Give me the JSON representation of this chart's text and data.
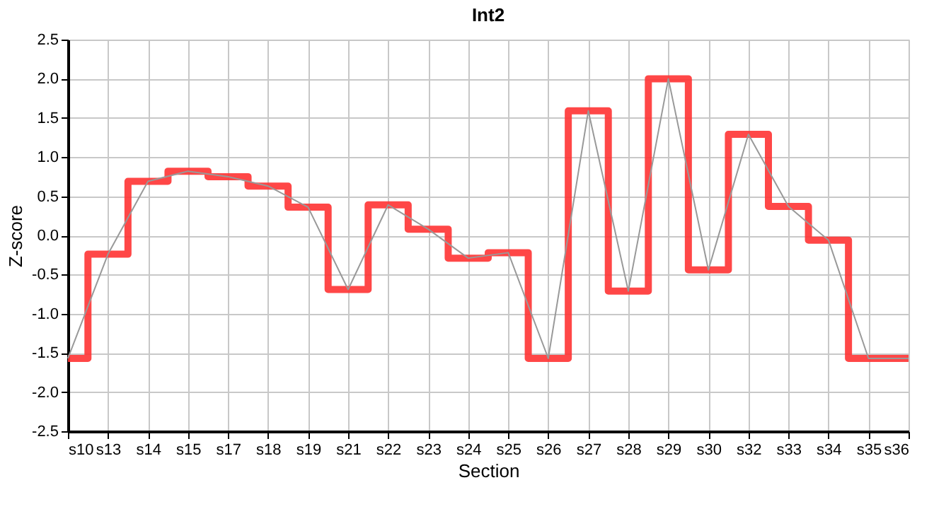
{
  "chart_data": {
    "type": "line",
    "title": "Int2",
    "xlabel": "Section",
    "ylabel": "Z-score",
    "categories": [
      "s10",
      "s13",
      "s14",
      "s15",
      "s17",
      "s18",
      "s19",
      "s21",
      "s22",
      "s23",
      "s24",
      "s25",
      "s26",
      "s27",
      "s28",
      "s29",
      "s30",
      "s32",
      "s33",
      "s34",
      "s35",
      "s36"
    ],
    "series": [
      {
        "type": "step",
        "color": "#ff3333",
        "values": [
          -1.57,
          -0.24,
          0.69,
          0.82,
          0.75,
          0.63,
          0.36,
          -0.69,
          0.39,
          0.08,
          -0.29,
          -0.22,
          -1.57,
          1.59,
          -0.71,
          2.0,
          -0.44,
          1.29,
          0.37,
          -0.06,
          -1.57,
          -1.57
        ]
      },
      {
        "type": "line",
        "color": "#999999",
        "values": [
          -1.57,
          -0.24,
          0.69,
          0.82,
          0.75,
          0.63,
          0.36,
          -0.69,
          0.39,
          0.08,
          -0.29,
          -0.22,
          -1.57,
          1.59,
          -0.71,
          2.0,
          -0.44,
          1.29,
          0.37,
          -0.06,
          -1.57,
          -1.57
        ]
      }
    ],
    "ylim": [
      -2.5,
      2.5
    ],
    "yticks": [
      {
        "value": -2.5,
        "label": "-2.5"
      },
      {
        "value": -2,
        "label": "-2.0"
      },
      {
        "value": -1.5,
        "label": "-1.5"
      },
      {
        "value": -1,
        "label": "-1.0"
      },
      {
        "value": -0.5,
        "label": "-0.5"
      },
      {
        "value": 0,
        "label": "0.0"
      },
      {
        "value": 0.5,
        "label": "0.5"
      },
      {
        "value": 1,
        "label": "1.0"
      },
      {
        "value": 1.5,
        "label": "1.5"
      },
      {
        "value": 2,
        "label": "2.0"
      },
      {
        "value": 2.5,
        "label": "2.5"
      }
    ],
    "grid": true,
    "legend": false,
    "marker": "none",
    "line_style": "solid"
  }
}
